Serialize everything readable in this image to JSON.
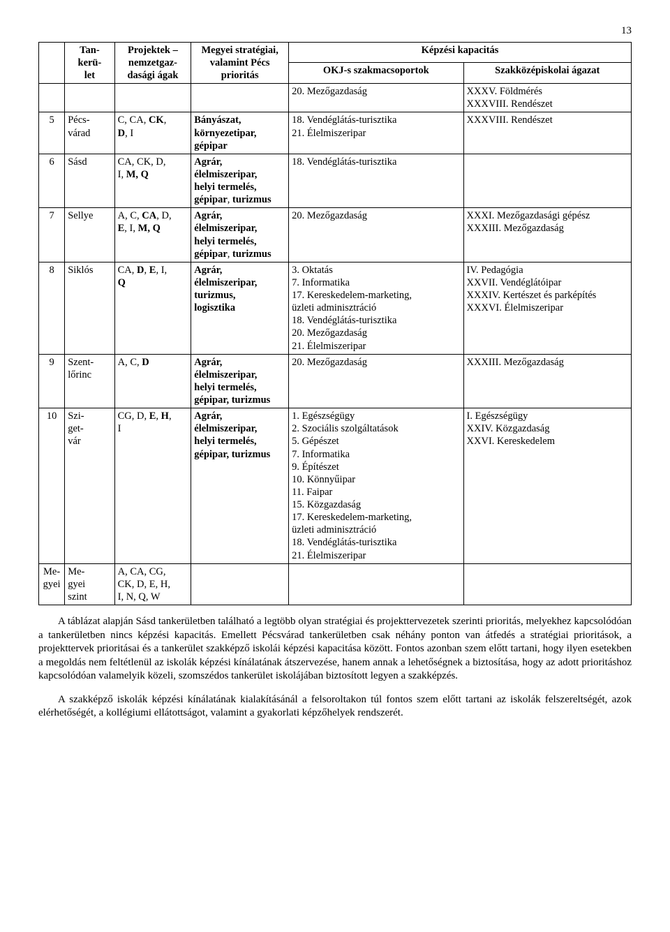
{
  "page_number": "13",
  "header": {
    "h_idx": "",
    "h_tank": "Tan-\nkerü-\nlet",
    "h_proj": "Projektek –\nnemzetgaz-\ndasági ágak",
    "h_strat": "Megyei stratégiai,\nvalamint Pécs\nprioritás",
    "h_kepzesi": "Képzési kapacitás",
    "h_okj": "OKJ-s szakmacsoportok",
    "h_agazat": "Szakközépiskolai ágazat"
  },
  "rows": [
    {
      "idx": "",
      "tank": "",
      "proj": "",
      "strat": "",
      "okj": "20. Mezőgazdaság",
      "agazat": "XXXV. Földmérés\nXXXVIII. Rendészet"
    },
    {
      "idx": "5",
      "tank": "Pécs-\nvárad",
      "proj": "C, CA, CK,\nD, I",
      "strat": "Bányászat,\nkörnyezetipar,\ngépipar",
      "okj": "18. Vendéglátás-turisztika\n21. Élelmiszeripar",
      "agazat": "XXXVIII. Rendészet"
    },
    {
      "idx": "6",
      "tank": "Sásd",
      "proj": "CA, CK, D,\nI, M, Q",
      "strat": "Agrár,\nélelmiszeripar,\nhelyi termelés,\ngépipar, turizmus",
      "okj": "18. Vendéglátás-turisztika",
      "agazat": ""
    },
    {
      "idx": "7",
      "tank": "Sellye",
      "proj": "A, C, CA, D,\nE, I, M, Q",
      "strat": "Agrár,\nélelmiszeripar,\nhelyi termelés,\ngépipar, turizmus",
      "okj": "20. Mezőgazdaság",
      "agazat": "XXXI. Mezőgazdasági gépész\nXXXIII. Mezőgazdaság"
    },
    {
      "idx": "8",
      "tank": "Siklós",
      "proj": "CA, D, E, I,\nQ",
      "strat": "Agrár,\nélelmiszeripar,\nturizmus,\nlogisztika",
      "okj": "3. Oktatás\n7. Informatika\n17. Kereskedelem-marketing,\nüzleti adminisztráció\n18. Vendéglátás-turisztika\n20. Mezőgazdaság\n21. Élelmiszeripar",
      "agazat": "IV. Pedagógia\nXXVII. Vendéglátóipar\nXXXIV. Kertészet és parképítés\nXXXVI. Élelmiszeripar"
    },
    {
      "idx": "9",
      "tank": "Szent-\nlőrinc",
      "proj": "A, C, D",
      "strat": "Agrár,\nélelmiszeripar,\nhelyi termelés,\ngépipar, turizmus",
      "okj": "20. Mezőgazdaság",
      "agazat": "XXXIII. Mezőgazdaság"
    },
    {
      "idx": "10",
      "tank": "Szi-\nget-\nvár",
      "proj": "CG, D, E, H,\nI",
      "strat": "Agrár,\nélelmiszeripar,\nhelyi termelés,\ngépipar, turizmus",
      "okj": "1. Egészségügy\n2. Szociális szolgáltatások\n5. Gépészet\n7. Informatika\n9. Építészet\n10. Könnyűipar\n11. Faipar\n15. Közgazdaság\n17. Kereskedelem-marketing,\nüzleti adminisztráció\n18. Vendéglátás-turisztika\n21. Élelmiszeripar",
      "agazat": "I. Egészségügy\nXXIV. Közgazdaság\nXXVI. Kereskedelem"
    },
    {
      "idx": "Me-\ngyei",
      "tank": "Me-\ngyei\nszint",
      "proj": "A, CA, CG,\nCK, D, E, H,\nI, N, Q, W",
      "strat": "",
      "okj": "",
      "agazat": ""
    }
  ],
  "paragraphs": [
    "A táblázat alapján Sásd tankerületben található a legtöbb olyan stratégiai és projekttervezetek szerinti prioritás, melyekhez kapcsolódóan a tankerületben nincs képzési kapacitás. Emellett Pécsvárad tankerületben csak néhány ponton van átfedés a stratégiai prioritások, a projekttervek prioritásai és a tankerület szakképző iskolái képzési kapacitása között. Fontos azonban szem előtt tartani, hogy ilyen esetekben a megoldás nem feltétlenül az iskolák képzési kínálatának átszervezése, hanem annak a lehetőségnek a biztosítása, hogy az adott prioritáshoz kapcsolódóan valamelyik közeli, szomszédos tankerület iskolájában biztosított legyen a szakképzés.",
    "A szakképző iskolák képzési kínálatának kialakításánál a felsoroltakon túl fontos szem előtt tartani az iskolák felszereltségét, azok elérhetőségét, a kollégiumi ellátottságot, valamint a gyakorlati képzőhelyek rendszerét."
  ],
  "bold_spans": {
    "5_proj": [
      "CK",
      "D"
    ],
    "6_tank": [
      "Sásd"
    ],
    "6_proj": [
      "M, Q"
    ],
    "7_tank": [
      "Sellye"
    ],
    "7_proj": [
      "CA",
      "E",
      "M, Q"
    ],
    "8_tank": [
      "Siklós"
    ],
    "8_proj": [
      "D",
      "E",
      "Q"
    ],
    "9_proj": [
      "D"
    ],
    "10_proj": [
      "E",
      "H"
    ]
  },
  "proj_html": {
    "5": "C, CA, <b>CK</b>,<br><b>D</b>, I",
    "6": "CA, CK, D,<br>I, <b>M, Q</b>",
    "7": "A, C, <b>CA</b>, D,<br><b>E</b>, I, <b>M, Q</b>",
    "8": "CA, <b>D</b>, <b>E</b>, I,<br><b>Q</b>",
    "9": "A, C, <b>D</b>",
    "10": "CG, D, <b>E</b>, <b>H</b>,<br>I",
    "Me-\ngyei": "A, CA, CG,<br>CK, D, E, H,<br>I, N, Q, W"
  },
  "strat_html": {
    "5": "<b>Bányászat,<br>környezetipar,<br>gépipar</b>",
    "6": "<b>Agrár,<br>élelmiszeripar,<br>helyi termelés,<br>gépipar</b>, <b>turizmus</b>",
    "7": "<b>Agrár,<br>élelmiszeripar,<br>helyi termelés,<br>gépipar</b>, <b>turizmus</b>",
    "8": "<b>Agrár,<br>élelmiszeripar,<br>turizmus,<br>logisztika</b>",
    "9": "<b>Agrár,<br>élelmiszeripar,<br>helyi termelés,<br>gépipar, turizmus</b>",
    "10": "<b>Agrár,<br>élelmiszeripar,<br>helyi termelés,<br>gépipar, turizmus</b>"
  }
}
